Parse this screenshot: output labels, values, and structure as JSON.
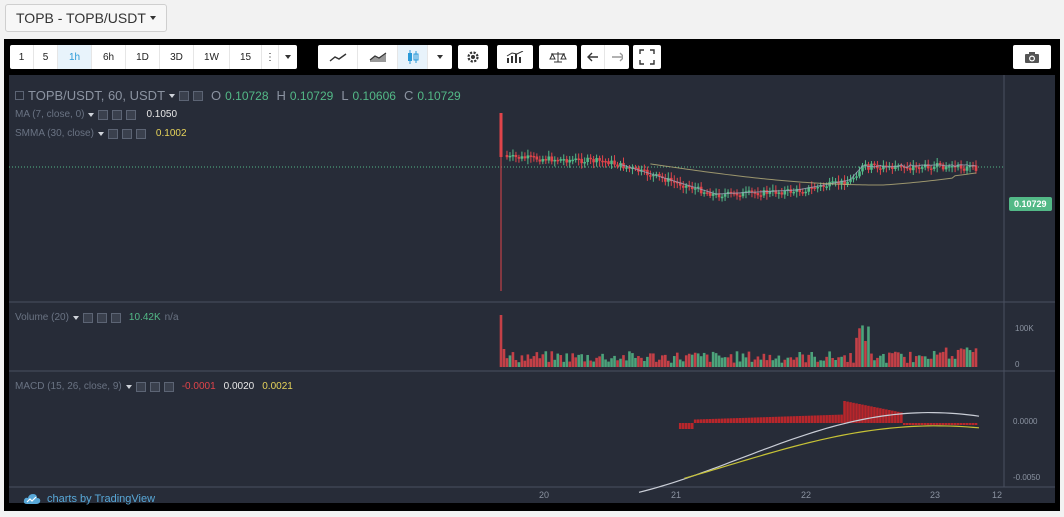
{
  "pair_button": {
    "label": "TOPB - TOPB/USDT"
  },
  "toolbar": {
    "intervals": [
      "1",
      "5",
      "1h",
      "6h",
      "1D",
      "3D",
      "1W",
      "15"
    ],
    "active_interval": "1h",
    "more_label": "⋮"
  },
  "legend": {
    "symbol": "TOPB/USDT, 60, USDT",
    "open_label": "O",
    "open": "0.10728",
    "high_label": "H",
    "high": "0.10729",
    "low_label": "L",
    "low": "0.10606",
    "close_label": "C",
    "close": "0.10729",
    "ma_label": "MA (7, close, 0)",
    "ma_value": "0.1050",
    "smma_label": "SMMA (30, close)",
    "smma_value": "0.1002",
    "volume_label": "Volume (20)",
    "volume_value": "10.42K",
    "volume_na": "n/a",
    "macd_label": "MACD (15, 26, close, 9)",
    "macd_hist": "-0.0001",
    "macd_line": "0.0020",
    "macd_signal": "0.0021"
  },
  "price_axis": {
    "current_price": "0.10729"
  },
  "volume_axis": {
    "ticks": [
      "100K",
      "0"
    ]
  },
  "macd_axis": {
    "ticks": [
      "0.0000",
      "-0.0050"
    ]
  },
  "time_axis": {
    "ticks": [
      "20",
      "21",
      "22",
      "23",
      "12"
    ]
  },
  "branding": {
    "text": "charts by TradingView"
  },
  "colors": {
    "up": "#53b987",
    "down": "#e0444a",
    "background": "#272c38",
    "ma": "#9aa4b8",
    "smma": "#b9b07a",
    "macd_line": "#c9cdd6",
    "signal_line": "#c6c236"
  }
}
